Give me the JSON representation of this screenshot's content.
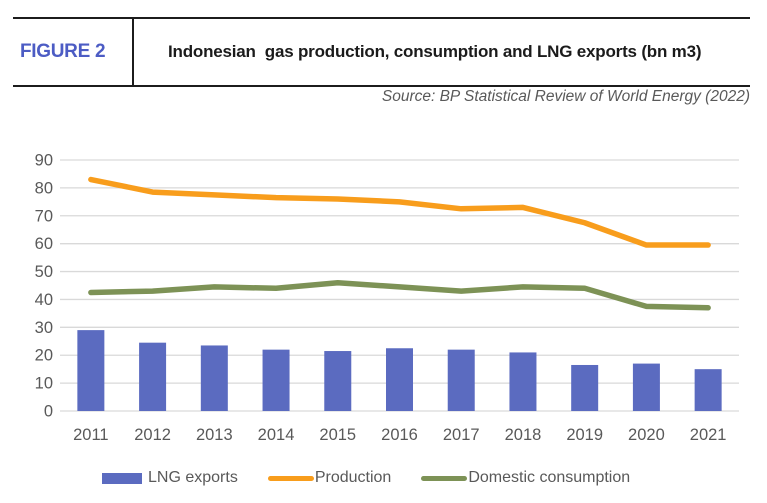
{
  "header": {
    "figure_label": "FIGURE 2",
    "title": "Indonesian  gas production, consumption and LNG exports (bn m3)",
    "source": "Source: BP Statistical Review of World Energy (2022)"
  },
  "colors": {
    "figure_label": "#4C5CC4",
    "bar": "#5B6BC0",
    "production": "#F89D1C",
    "consumption": "#7D9256",
    "grid": "#D9D9D9",
    "axis_text": "#595959",
    "title_text": "#1B1B1B",
    "source_text": "#595959"
  },
  "legend": [
    {
      "label": "LNG exports",
      "type": "bar",
      "color": "#5B6BC0"
    },
    {
      "label": "Production",
      "type": "line",
      "color": "#F89D1C"
    },
    {
      "label": "Domestic consumption",
      "type": "line",
      "color": "#7D9256"
    }
  ],
  "chart_data": {
    "type": "combo",
    "title": "Indonesian gas production, consumption and LNG exports (bn m3)",
    "xlabel": "",
    "ylabel": "",
    "categories": [
      "2011",
      "2012",
      "2013",
      "2014",
      "2015",
      "2016",
      "2017",
      "2018",
      "2019",
      "2020",
      "2021"
    ],
    "series": [
      {
        "name": "LNG exports",
        "type": "bar",
        "color": "#5B6BC0",
        "values": [
          29,
          24.5,
          23.5,
          22,
          21.5,
          22.5,
          22,
          21,
          16.5,
          17,
          15
        ]
      },
      {
        "name": "Production",
        "type": "line",
        "color": "#F89D1C",
        "values": [
          83,
          78.5,
          77.5,
          76.5,
          76,
          75,
          72.5,
          73,
          67.5,
          59.5,
          59.5
        ]
      },
      {
        "name": "Domestic consumption",
        "type": "line",
        "color": "#7D9256",
        "values": [
          42.5,
          43,
          44.5,
          44,
          46,
          44.5,
          43,
          44.5,
          44,
          37.5,
          37
        ]
      }
    ],
    "ylim": [
      0,
      90
    ],
    "ytick_step": 10,
    "grid": true,
    "legend_position": "bottom"
  }
}
